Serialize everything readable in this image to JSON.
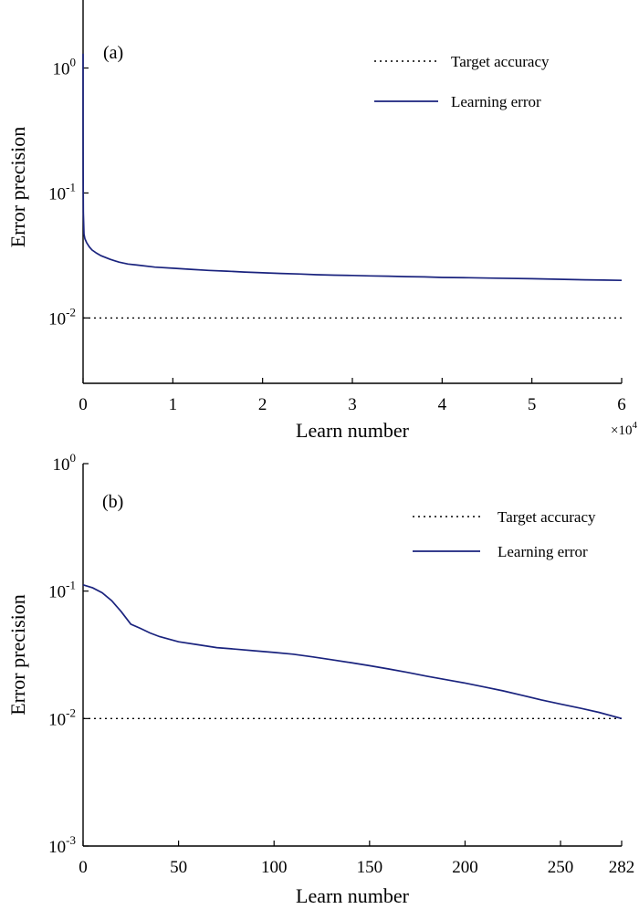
{
  "chart_data": [
    {
      "type": "line",
      "panel_label": "(a)",
      "xlabel": "Learn number",
      "ylabel": "Error precision",
      "x_multiplier": "×10",
      "x_multiplier_exp": "4",
      "yscale": "log",
      "xlim": [
        0,
        60000
      ],
      "ylim": [
        0.003,
        3.5
      ],
      "x_ticks": [
        {
          "value": 0,
          "label": "0"
        },
        {
          "value": 10000,
          "label": "1"
        },
        {
          "value": 20000,
          "label": "2"
        },
        {
          "value": 30000,
          "label": "3"
        },
        {
          "value": 40000,
          "label": "4"
        },
        {
          "value": 50000,
          "label": "5"
        },
        {
          "value": 60000,
          "label": "6"
        }
      ],
      "y_ticks": [
        {
          "value": 1,
          "base": "10",
          "exp": "0"
        },
        {
          "value": 0.1,
          "base": "10",
          "exp": "-1"
        },
        {
          "value": 0.01,
          "base": "10",
          "exp": "-2"
        }
      ],
      "legend": {
        "position": "top-right"
      },
      "series": [
        {
          "name": "Target accuracy",
          "style": "dotted",
          "color": "#000000",
          "x": [
            0,
            60000
          ],
          "y": [
            0.01,
            0.01
          ]
        },
        {
          "name": "Learning error",
          "style": "solid",
          "color": "#1a237e",
          "x": [
            0,
            3,
            10,
            30,
            100,
            200,
            400,
            700,
            1000,
            1500,
            2000,
            3000,
            4000,
            5000,
            6000,
            8000,
            10000,
            12000,
            14000,
            16000,
            18000,
            20000,
            22000,
            24000,
            26000,
            28000,
            30000,
            32000,
            34000,
            36000,
            38000,
            40000,
            43000,
            46000,
            50000,
            53000,
            56000,
            58000,
            60000
          ],
          "y": [
            1.3,
            0.4,
            0.15,
            0.07,
            0.047,
            0.043,
            0.04,
            0.037,
            0.035,
            0.033,
            0.0315,
            0.0295,
            0.028,
            0.027,
            0.0265,
            0.0255,
            0.025,
            0.0245,
            0.024,
            0.0237,
            0.0233,
            0.023,
            0.0227,
            0.0225,
            0.0222,
            0.022,
            0.0219,
            0.0217,
            0.0216,
            0.0214,
            0.0213,
            0.0211,
            0.021,
            0.0208,
            0.0206,
            0.0204,
            0.0202,
            0.0201,
            0.02
          ]
        }
      ]
    },
    {
      "type": "line",
      "panel_label": "(b)",
      "xlabel": "Learn number",
      "ylabel": "Error precision",
      "yscale": "log",
      "xlim": [
        0,
        282
      ],
      "ylim": [
        0.001,
        1
      ],
      "x_ticks": [
        {
          "value": 0,
          "label": "0"
        },
        {
          "value": 50,
          "label": "50"
        },
        {
          "value": 100,
          "label": "100"
        },
        {
          "value": 150,
          "label": "150"
        },
        {
          "value": 200,
          "label": "200"
        },
        {
          "value": 250,
          "label": "250"
        },
        {
          "value": 282,
          "label": "282"
        }
      ],
      "y_ticks": [
        {
          "value": 1,
          "base": "10",
          "exp": "0"
        },
        {
          "value": 0.1,
          "base": "10",
          "exp": "-1"
        },
        {
          "value": 0.01,
          "base": "10",
          "exp": "-2"
        },
        {
          "value": 0.001,
          "base": "10",
          "exp": "-3"
        }
      ],
      "legend": {
        "position": "top-right"
      },
      "series": [
        {
          "name": "Target accuracy",
          "style": "dotted",
          "color": "#000000",
          "x": [
            0,
            282
          ],
          "y": [
            0.01,
            0.01
          ]
        },
        {
          "name": "Learning error",
          "style": "solid",
          "color": "#1a237e",
          "x": [
            0,
            5,
            10,
            15,
            20,
            25,
            30,
            35,
            40,
            45,
            50,
            60,
            70,
            80,
            90,
            100,
            110,
            120,
            130,
            140,
            150,
            160,
            170,
            180,
            190,
            200,
            210,
            220,
            230,
            240,
            250,
            260,
            270,
            282
          ],
          "y": [
            0.112,
            0.106,
            0.097,
            0.084,
            0.069,
            0.055,
            0.051,
            0.047,
            0.044,
            0.042,
            0.04,
            0.038,
            0.036,
            0.035,
            0.034,
            0.033,
            0.032,
            0.0305,
            0.029,
            0.0275,
            0.026,
            0.0245,
            0.023,
            0.0215,
            0.0202,
            0.019,
            0.0177,
            0.0165,
            0.0152,
            0.014,
            0.013,
            0.0121,
            0.0112,
            0.01
          ]
        }
      ]
    }
  ]
}
